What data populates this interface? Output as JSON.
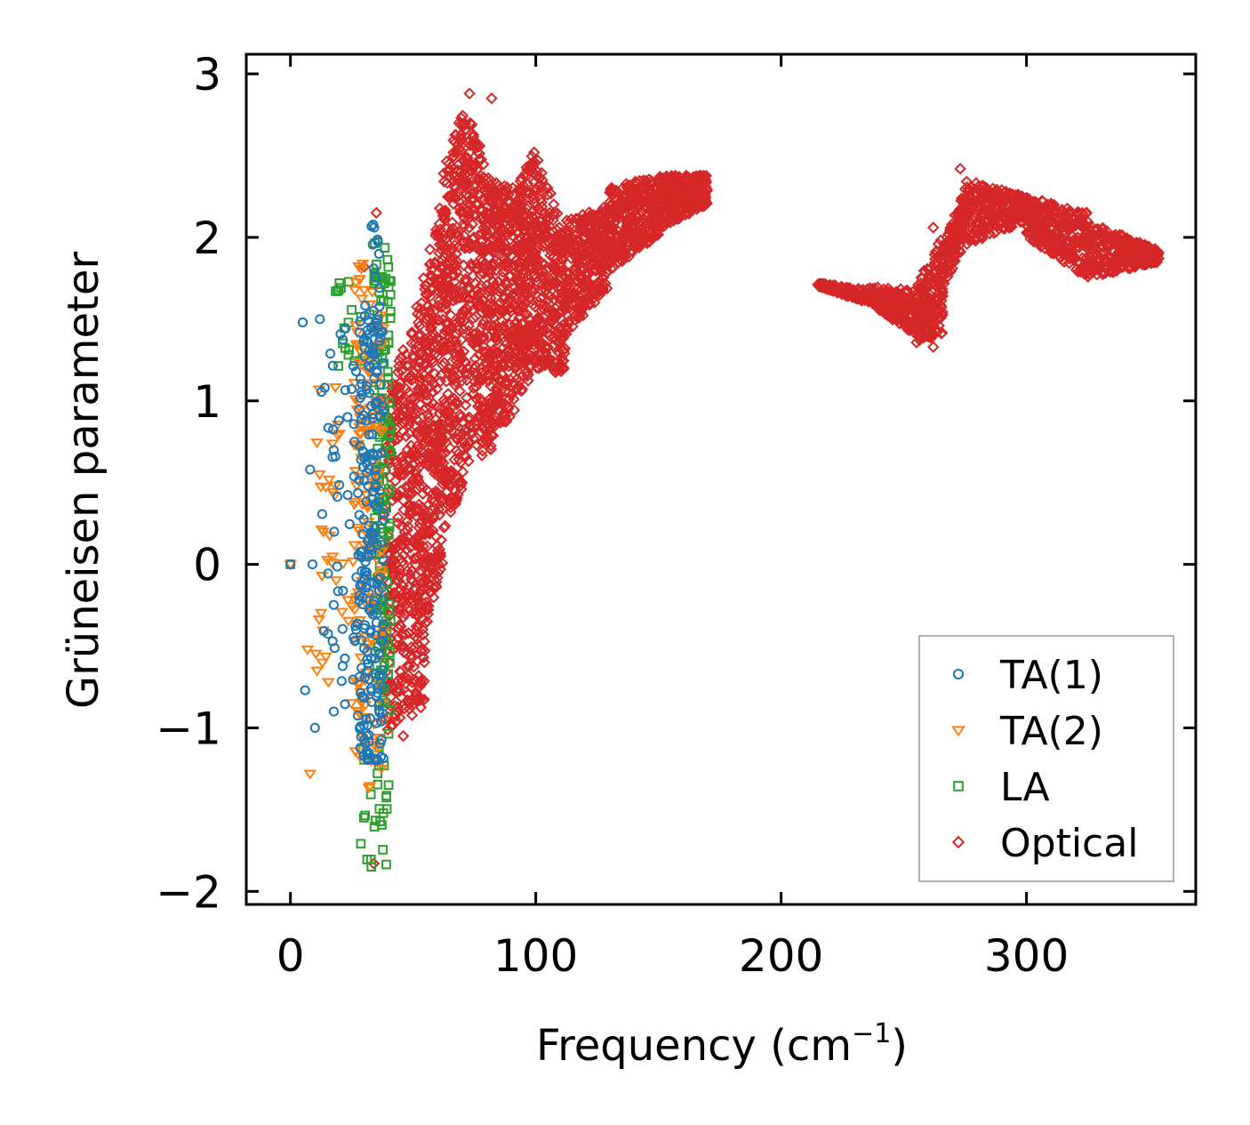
{
  "chart_data": {
    "type": "scatter",
    "xlabel": "Frequency (cm",
    "xlabel_sup": "−1",
    "xlabel_close": ")",
    "ylabel": "Grüneisen parameter",
    "xlim": [
      -18,
      369
    ],
    "ylim": [
      -2.08,
      3.12
    ],
    "xticks": [
      0,
      100,
      200,
      300
    ],
    "xtick_labels": [
      "0",
      "100",
      "200",
      "300"
    ],
    "yticks": [
      -2,
      -1,
      0,
      1,
      2,
      3
    ],
    "ytick_labels": [
      "−2",
      "−1",
      "0",
      "1",
      "2",
      "3"
    ],
    "legend_position": "lower-right",
    "series": [
      {
        "name": "TA(1)",
        "marker": "circle",
        "color": "#1f77b4",
        "clusters": [
          {
            "x": [
              28,
              38
            ],
            "y": [
              -1.2,
              1.6
            ],
            "n": 220
          },
          {
            "x": [
              12,
              30
            ],
            "y": [
              -1.0,
              1.5
            ],
            "n": 55
          },
          {
            "x": [
              33,
              37
            ],
            "y": [
              1.6,
              2.1
            ],
            "n": 10
          }
        ],
        "points": [
          [
            0,
            0
          ],
          [
            5,
            1.48
          ],
          [
            8,
            0.58
          ],
          [
            9,
            0
          ],
          [
            10,
            -1.0
          ],
          [
            6,
            -0.77
          ],
          [
            14,
            1.08
          ],
          [
            12,
            1.5
          ]
        ]
      },
      {
        "name": "TA(2)",
        "marker": "triangle-down",
        "color": "#ff7f0e",
        "clusters": [
          {
            "x": [
              26,
              38
            ],
            "y": [
              -1.5,
              1.9
            ],
            "n": 150
          },
          {
            "x": [
              10,
              28
            ],
            "y": [
              -1.0,
              1.1
            ],
            "n": 40
          }
        ],
        "points": [
          [
            8,
            -1.28
          ],
          [
            7,
            -0.52
          ],
          [
            13,
            -0.6
          ],
          [
            20,
            0.8
          ],
          [
            0,
            0
          ]
        ]
      },
      {
        "name": "LA",
        "marker": "square",
        "color": "#2ca02c",
        "clusters": [
          {
            "x": [
              34,
              41
            ],
            "y": [
              -0.9,
              2.0
            ],
            "n": 140
          },
          {
            "x": [
              28,
              40
            ],
            "y": [
              -1.85,
              -0.9
            ],
            "n": 25
          },
          {
            "x": [
              18,
              36
            ],
            "y": [
              1.2,
              1.75
            ],
            "n": 20
          }
        ],
        "points": [
          [
            0,
            0
          ],
          [
            33,
            -1.85
          ],
          [
            20,
            1.72
          ],
          [
            40,
            -1.35
          ]
        ]
      },
      {
        "name": "Optical",
        "marker": "diamond",
        "color": "#d62728",
        "bands": [
          {
            "x": [
              38,
              48
            ],
            "lo": [
              -1.05,
              -0.9
            ],
            "hi": [
              1.0,
              1.4
            ],
            "n": 260
          },
          {
            "x": [
              48,
              55
            ],
            "lo": [
              -0.95,
              -0.85
            ],
            "hi": [
              1.4,
              1.8
            ],
            "n": 260
          },
          {
            "x": [
              55,
              62
            ],
            "lo": [
              -0.4,
              0.0
            ],
            "hi": [
              1.8,
              2.3
            ],
            "n": 260
          },
          {
            "x": [
              62,
              72
            ],
            "lo": [
              0.2,
              0.5
            ],
            "hi": [
              2.4,
              2.85
            ],
            "n": 340
          },
          {
            "x": [
              72,
              82
            ],
            "lo": [
              0.6,
              0.7
            ],
            "hi": [
              2.8,
              2.35
            ],
            "n": 300
          },
          {
            "x": [
              82,
              92
            ],
            "lo": [
              0.75,
              0.95
            ],
            "hi": [
              2.35,
              2.3
            ],
            "n": 280
          },
          {
            "x": [
              92,
              100
            ],
            "lo": [
              1.0,
              1.2
            ],
            "hi": [
              2.3,
              2.55
            ],
            "n": 240
          },
          {
            "x": [
              100,
              112
            ],
            "lo": [
              1.2,
              1.15
            ],
            "hi": [
              2.55,
              2.0
            ],
            "n": 260
          },
          {
            "x": [
              112,
              130
            ],
            "lo": [
              1.4,
              1.7
            ],
            "hi": [
              2.1,
              2.2
            ],
            "n": 300
          },
          {
            "x": [
              130,
              150
            ],
            "lo": [
              1.8,
              2.0
            ],
            "hi": [
              2.3,
              2.38
            ],
            "n": 300
          },
          {
            "x": [
              150,
              170
            ],
            "lo": [
              2.05,
              2.2
            ],
            "hi": [
              2.38,
              2.38
            ],
            "n": 300
          },
          {
            "x": [
              215,
              235
            ],
            "lo": [
              1.7,
              1.6
            ],
            "hi": [
              1.72,
              1.68
            ],
            "n": 180
          },
          {
            "x": [
              235,
              255
            ],
            "lo": [
              1.6,
              1.4
            ],
            "hi": [
              1.7,
              1.68
            ],
            "n": 200
          },
          {
            "x": [
              255,
              266
            ],
            "lo": [
              1.35,
              1.4
            ],
            "hi": [
              1.7,
              2.02
            ],
            "n": 180
          },
          {
            "x": [
              266,
              275
            ],
            "lo": [
              1.7,
              1.95
            ],
            "hi": [
              1.95,
              2.3
            ],
            "n": 140
          },
          {
            "x": [
              275,
              300
            ],
            "lo": [
              1.95,
              2.1
            ],
            "hi": [
              2.35,
              2.25
            ],
            "n": 260
          },
          {
            "x": [
              300,
              325
            ],
            "lo": [
              2.0,
              1.75
            ],
            "hi": [
              2.25,
              2.15
            ],
            "n": 280
          },
          {
            "x": [
              325,
              354
            ],
            "lo": [
              1.75,
              1.85
            ],
            "hi": [
              2.1,
              1.92
            ],
            "n": 280
          }
        ],
        "points": [
          [
            73,
            2.88
          ],
          [
            82,
            2.85
          ],
          [
            46,
            -1.05
          ],
          [
            35,
            2.15
          ],
          [
            34,
            -1.83
          ],
          [
            30,
            1.82
          ],
          [
            262,
            1.33
          ],
          [
            262,
            2.06
          ],
          [
            273,
            2.42
          ]
        ]
      }
    ]
  }
}
